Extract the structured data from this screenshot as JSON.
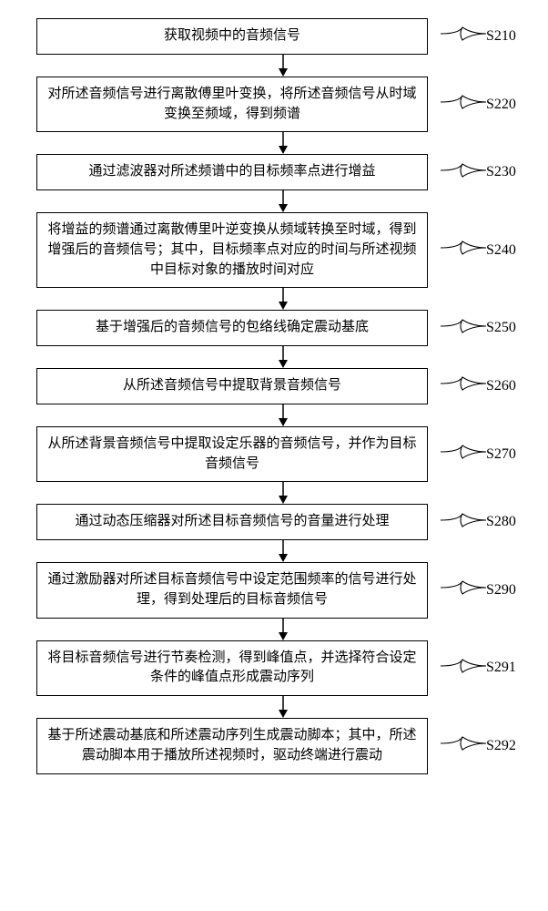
{
  "steps": [
    {
      "text": "获取视频中的音频信号",
      "label": "S210",
      "singleLine": true
    },
    {
      "text": "对所述音频信号进行离散傅里叶变换，将所述音频信号从时域变换至频域，得到频谱",
      "label": "S220",
      "singleLine": false
    },
    {
      "text": "通过滤波器对所述频谱中的目标频率点进行增益",
      "label": "S230",
      "singleLine": true
    },
    {
      "text": "将增益的频谱通过离散傅里叶逆变换从频域转换至时域，得到增强后的音频信号；其中，目标频率点对应的时间与所述视频中目标对象的播放时间对应",
      "label": "S240",
      "singleLine": false
    },
    {
      "text": "基于增强后的音频信号的包络线确定震动基底",
      "label": "S250",
      "singleLine": true
    },
    {
      "text": "从所述音频信号中提取背景音频信号",
      "label": "S260",
      "singleLine": true
    },
    {
      "text": "从所述背景音频信号中提取设定乐器的音频信号，并作为目标音频信号",
      "label": "S270",
      "singleLine": false
    },
    {
      "text": "通过动态压缩器对所述目标音频信号的音量进行处理",
      "label": "S280",
      "singleLine": true
    },
    {
      "text": "通过激励器对所述目标音频信号中设定范围频率的信号进行处理，得到处理后的目标音频信号",
      "label": "S290",
      "singleLine": false
    },
    {
      "text": "将目标音频信号进行节奏检测，得到峰值点，并选择符合设定条件的峰值点形成震动序列",
      "label": "S291",
      "singleLine": false
    },
    {
      "text": "基于所述震动基底和所述震动序列生成震动脚本；其中，所述震动脚本用于播放所述视频时，驱动终端进行震动",
      "label": "S292",
      "singleLine": false
    }
  ],
  "style": {
    "arrow_height": 24,
    "stroke": "#000000",
    "stroke_width": 1.5
  }
}
